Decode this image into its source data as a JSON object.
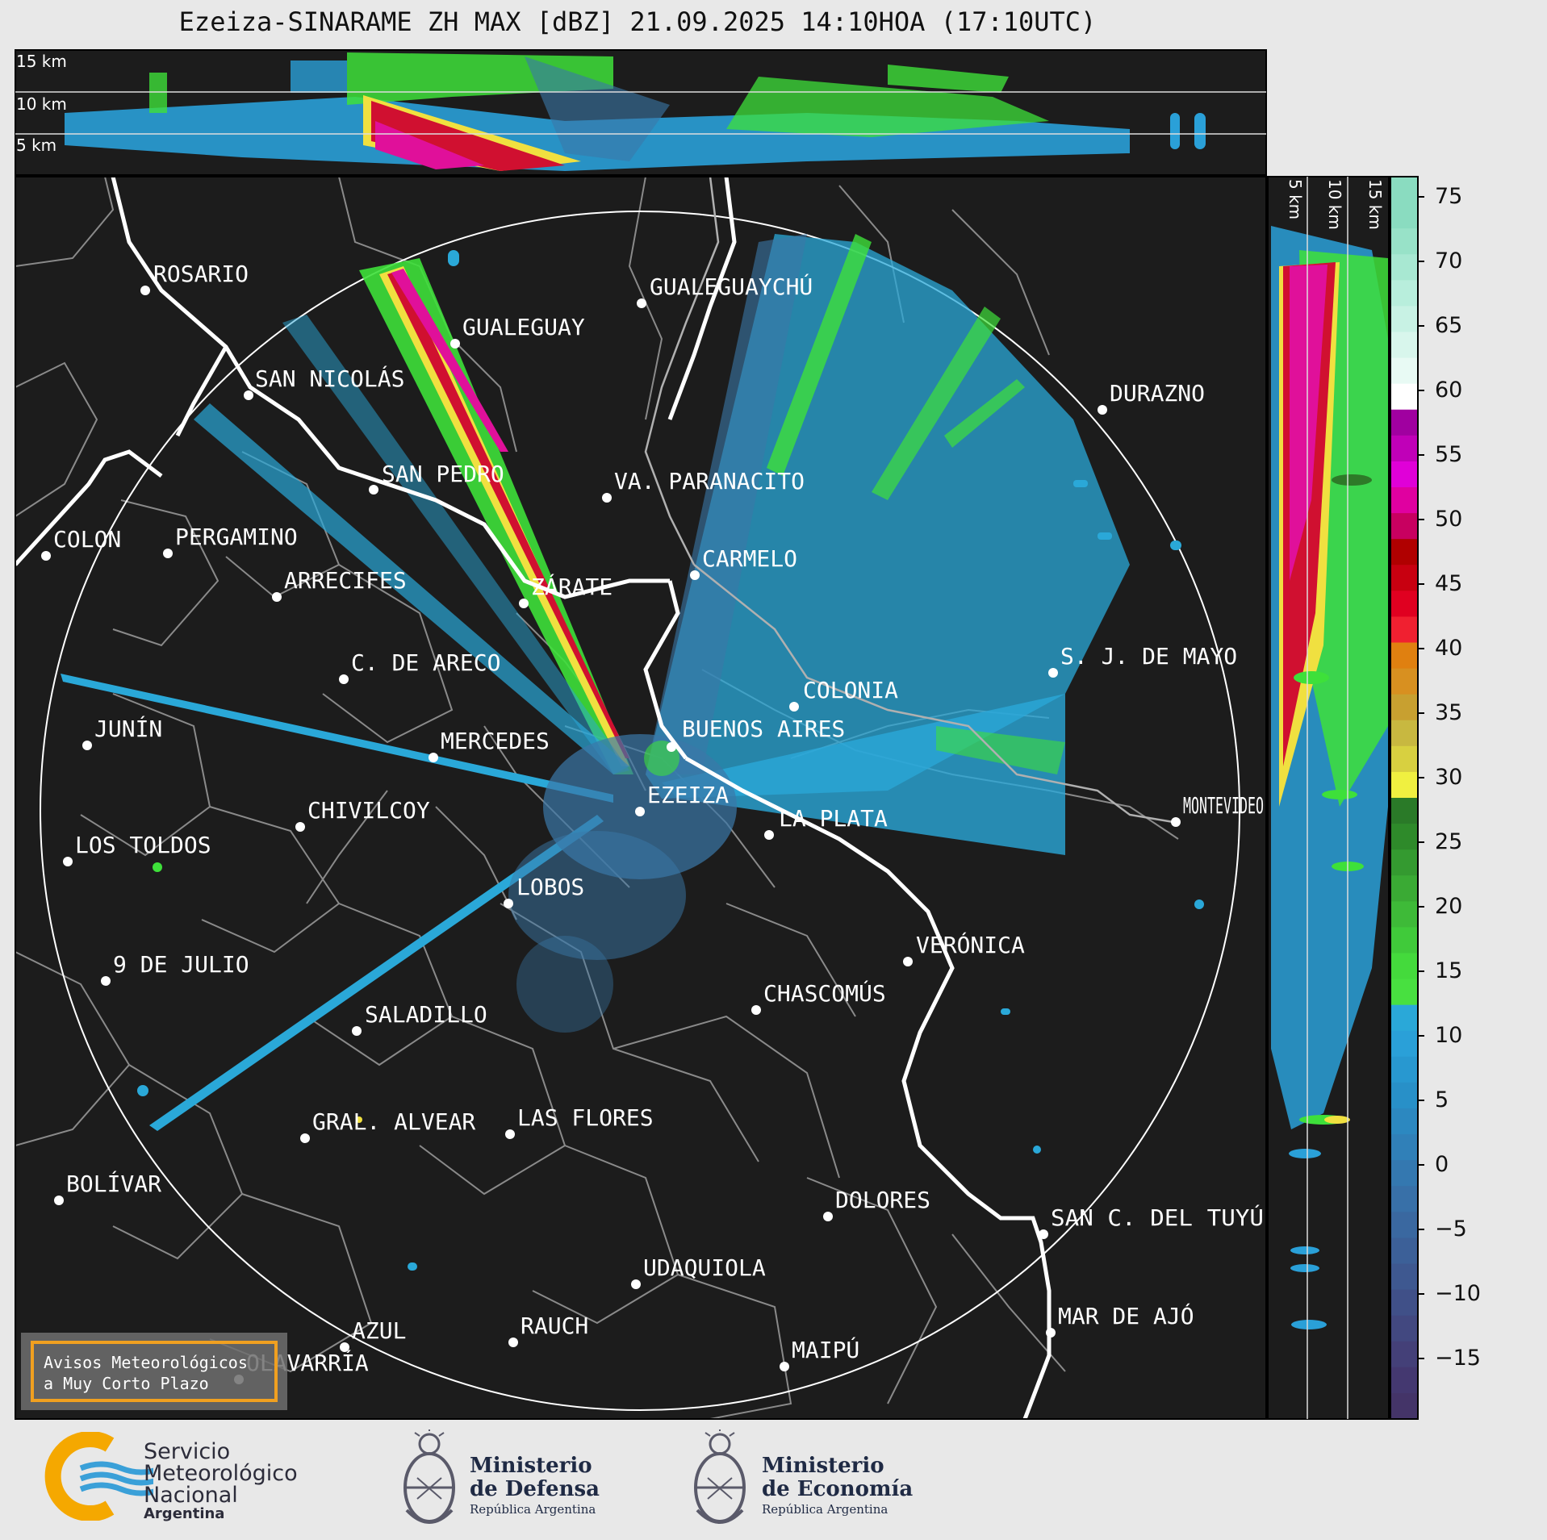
{
  "title": "Ezeiza-SINARAME ZH MAX [dBZ] 21.09.2025 14:10HOA (17:10UTC)",
  "height_labels": [
    "15 km",
    "10 km",
    "5 km"
  ],
  "side_height_labels": [
    "5 km",
    "10 km",
    "15 km"
  ],
  "colorbar": {
    "ticks": [
      "75",
      "70",
      "65",
      "60",
      "55",
      "50",
      "45",
      "40",
      "35",
      "30",
      "25",
      "20",
      "15",
      "10",
      "5",
      "0",
      "−5",
      "−10",
      "−15"
    ]
  },
  "cities": [
    {
      "name": "ROSARIO"
    },
    {
      "name": "GUALEGUAYCHÚ"
    },
    {
      "name": "GUALEGUAY"
    },
    {
      "name": "SAN NICOLÁS"
    },
    {
      "name": "DURAZNO"
    },
    {
      "name": "SAN PEDRO"
    },
    {
      "name": "VA. PARANACITO"
    },
    {
      "name": "COLON"
    },
    {
      "name": "PERGAMINO"
    },
    {
      "name": "CARMELO"
    },
    {
      "name": "ARRECIFES"
    },
    {
      "name": "ZÁRATE"
    },
    {
      "name": "C. DE ARECO"
    },
    {
      "name": "S. J. DE MAYO"
    },
    {
      "name": "COLONIA"
    },
    {
      "name": "JUNÍN"
    },
    {
      "name": "BUENOS AIRES"
    },
    {
      "name": "MERCEDES"
    },
    {
      "name": "EZEIZA"
    },
    {
      "name": "MONTEVIDEO"
    },
    {
      "name": "CHIVILCOY"
    },
    {
      "name": "LA PLATA"
    },
    {
      "name": "LOS TOLDOS"
    },
    {
      "name": "LOBOS"
    },
    {
      "name": "VERÓNICA"
    },
    {
      "name": "9 DE JULIO"
    },
    {
      "name": "CHASCOMÚS"
    },
    {
      "name": "SALADILLO"
    },
    {
      "name": "GRAL. ALVEAR"
    },
    {
      "name": "LAS FLORES"
    },
    {
      "name": "BOLÍVAR"
    },
    {
      "name": "DOLORES"
    },
    {
      "name": "SAN C. DEL TUYÚ"
    },
    {
      "name": "UDAQUIOLA"
    },
    {
      "name": "MAR DE AJÓ"
    },
    {
      "name": "RAUCH"
    },
    {
      "name": "AZUL"
    },
    {
      "name": "MAIPÚ"
    },
    {
      "name": "OLAVARRÍA"
    }
  ],
  "warning_box": {
    "line1": "Avisos Meteorológicos",
    "line2": "a Muy Corto Plazo"
  },
  "logos": {
    "smn": {
      "line1": "Servicio",
      "line2": "Meteorológico",
      "line3": "Nacional",
      "line4": "Argentina"
    },
    "defensa": {
      "line1": "Ministerio",
      "line2": "de Defensa",
      "line3": "República Argentina"
    },
    "economia": {
      "line1": "Ministerio",
      "line2": "de Economía",
      "line3": "República Argentina"
    }
  },
  "colors": {
    "map_bg": "#1c1c1c",
    "coast": "#ffffff",
    "boundaries": "#8a8a8a",
    "echo_light": "#2aa8d8",
    "echo_dark": "#3a78a8",
    "echo_green": "#3ee03a",
    "echo_yellow": "#f0e040",
    "echo_red": "#d01030",
    "echo_magenta": "#e0109a",
    "warning_border": "#f0a020",
    "smn_orange": "#f5a800",
    "smn_blue": "#3aa0d8"
  }
}
